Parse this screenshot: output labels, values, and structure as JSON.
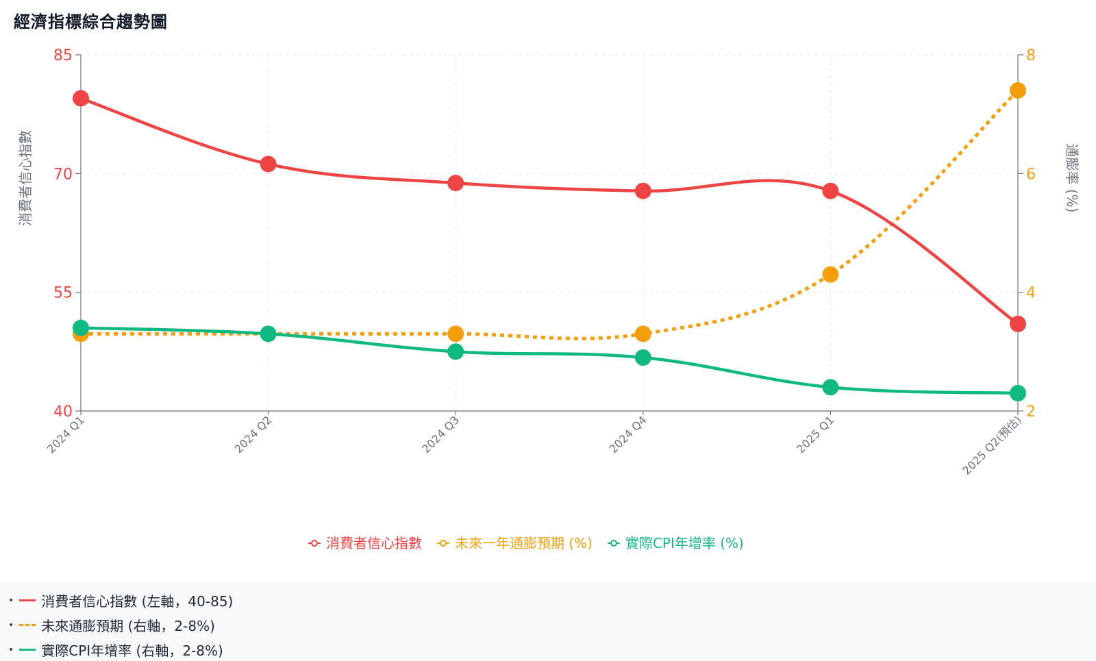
{
  "title": "經濟指標綜合趨勢圖",
  "chart_data": {
    "type": "line",
    "categories": [
      "2024 Q1",
      "2024 Q2",
      "2024 Q3",
      "2024 Q4",
      "2025 Q1",
      "2025 Q2(預估)"
    ],
    "y_left": {
      "label": "消費者信心指數",
      "range": [
        40,
        85
      ],
      "ticks": [
        40,
        55,
        70,
        85
      ],
      "color": "#ef4444"
    },
    "y_right": {
      "label": "通膨率 (%)",
      "range": [
        2,
        8
      ],
      "ticks": [
        2,
        4,
        6,
        8
      ],
      "color": "#f59e0b"
    },
    "grid": true,
    "legend_position": "bottom-center",
    "series": [
      {
        "name": "消費者信心指數",
        "axis": "left",
        "color": "#ef4444",
        "style": "solid",
        "values": [
          79.5,
          71.2,
          68.8,
          67.8,
          67.8,
          51.0
        ]
      },
      {
        "name": "未來一年通膨預期 (%)",
        "axis": "right",
        "color": "#f59e0b",
        "style": "dotted",
        "values": [
          3.3,
          3.3,
          3.3,
          3.3,
          4.3,
          7.4
        ]
      },
      {
        "name": "實際CPI年增率 (%)",
        "axis": "right",
        "color": "#10b981",
        "style": "solid",
        "values": [
          3.4,
          3.3,
          3.0,
          2.9,
          2.4,
          2.3
        ]
      }
    ]
  },
  "notes": [
    {
      "text": "消費者信心指數 (左軸，40-85)",
      "color": "#ef4444",
      "style": "solid"
    },
    {
      "text": "未來通膨預期 (右軸，2-8%)",
      "color": "#f59e0b",
      "style": "dashed"
    },
    {
      "text": "實際CPI年增率 (右軸，2-8%)",
      "color": "#10b981",
      "style": "solid"
    }
  ]
}
